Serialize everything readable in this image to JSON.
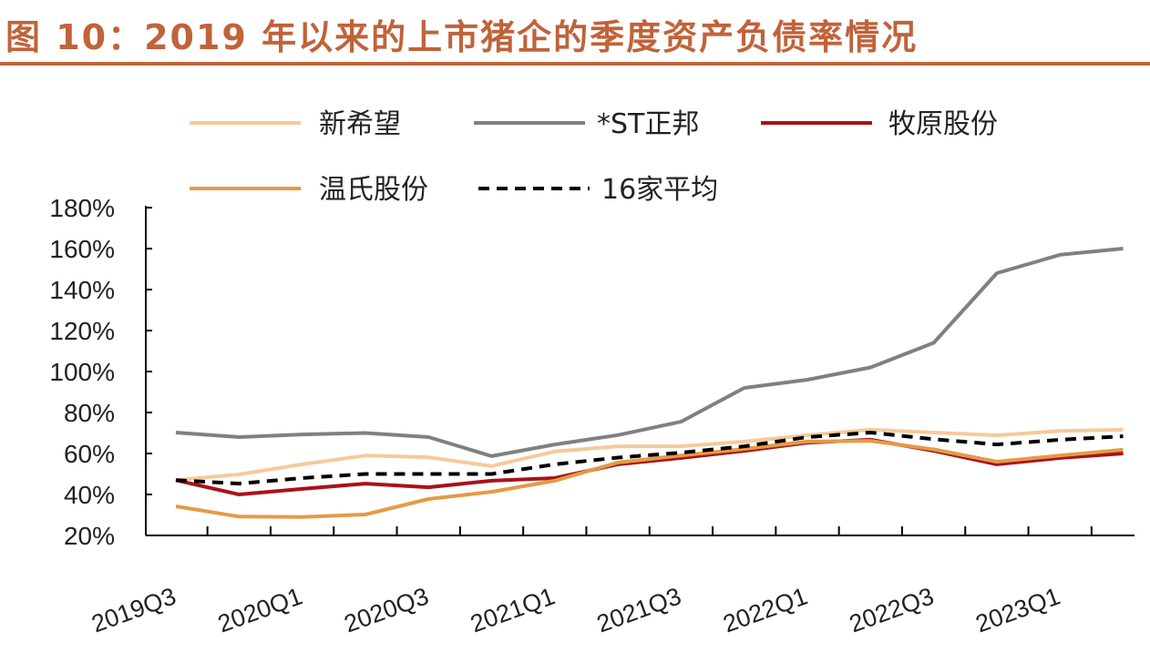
{
  "title": "图 10：2019 年以来的上市猪企的季度资产负债率情况",
  "chart_data": {
    "type": "line",
    "title": "图 10：2019 年以来的上市猪企的季度资产负债率情况",
    "xlabel": "",
    "ylabel": "",
    "ylim": [
      20,
      180
    ],
    "yticks": [
      "20%",
      "40%",
      "60%",
      "80%",
      "100%",
      "120%",
      "140%",
      "160%",
      "180%"
    ],
    "ytick_values": [
      20,
      40,
      60,
      80,
      100,
      120,
      140,
      160,
      180
    ],
    "x": [
      "2019Q3",
      "2019Q4",
      "2020Q1",
      "2020Q2",
      "2020Q3",
      "2020Q4",
      "2021Q1",
      "2021Q2",
      "2021Q3",
      "2021Q4",
      "2022Q1",
      "2022Q2",
      "2022Q3",
      "2022Q4",
      "2023Q1",
      "2023Q2"
    ],
    "xtick_labels": [
      "2019Q3",
      "2020Q1",
      "2020Q3",
      "2021Q1",
      "2021Q3",
      "2022Q1",
      "2022Q3",
      "2023Q1"
    ],
    "grid": false,
    "legend_position": "top",
    "series": [
      {
        "name": "新希望",
        "color": "#F7C99B",
        "dash": false,
        "values": [
          47,
          49.8,
          54.7,
          59,
          58.2,
          53.8,
          61,
          63.5,
          63.5,
          65.8,
          68.9,
          71.6,
          70.2,
          68.9,
          71,
          71.6
        ]
      },
      {
        "name": "*ST正邦",
        "color": "#808080",
        "dash": false,
        "values": [
          70.2,
          68,
          69.3,
          70,
          68,
          58.7,
          64.4,
          69,
          75.5,
          92,
          96,
          102,
          114,
          148,
          157,
          160
        ]
      },
      {
        "name": "牧原股份",
        "color": "#A8121A",
        "dash": false,
        "values": [
          47,
          40,
          42.7,
          45.3,
          43.5,
          46.7,
          48,
          54.7,
          57.8,
          61.3,
          65.3,
          66.7,
          61.3,
          54.7,
          57.8,
          60
        ]
      },
      {
        "name": "温氏股份",
        "color": "#E59A45",
        "dash": false,
        "values": [
          34.2,
          29.2,
          29,
          30.2,
          37.8,
          41.3,
          46.7,
          55.6,
          59,
          62.2,
          65.8,
          66.2,
          62,
          56,
          59,
          61.8
        ]
      },
      {
        "name": "16家平均",
        "color": "#000000",
        "dash": true,
        "values": [
          47,
          45.3,
          48,
          50,
          50,
          50,
          54.7,
          58,
          60.4,
          63.5,
          68,
          70.2,
          67,
          64.4,
          66.7,
          68.4
        ]
      }
    ]
  }
}
